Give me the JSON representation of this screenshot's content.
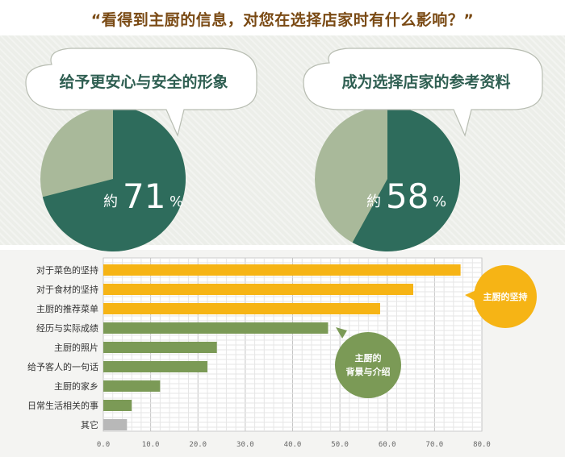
{
  "title": "“看得到主厨的信息，对您在选择店家时有什么影响？”",
  "pies": [
    {
      "bubble": "给予更安心与安全的形象",
      "prefix": "約",
      "value": 71,
      "unit": "%"
    },
    {
      "bubble": "成为选择店家的参考资料",
      "prefix": "約",
      "value": 58,
      "unit": "%"
    }
  ],
  "chart_data": {
    "type": "bar",
    "orientation": "horizontal",
    "categories": [
      "对于菜色的坚持",
      "对于食材的坚持",
      "主厨的推荐菜单",
      "经历与实际成绩",
      "主厨的照片",
      "给予客人的一句话",
      "主厨的家乡",
      "日常生活相关的事",
      "其它"
    ],
    "values": [
      75.5,
      65.5,
      58.5,
      47.5,
      24,
      22,
      12,
      6,
      5
    ],
    "bar_colors": [
      "#f6b415",
      "#f6b415",
      "#f6b415",
      "#7b9a56",
      "#7b9a56",
      "#7b9a56",
      "#7b9a56",
      "#7b9a56",
      "#b8b8b8"
    ],
    "xlim": [
      0,
      80
    ],
    "xticks": [
      "0.0",
      "10.0",
      "20.0",
      "30.0",
      "40.0",
      "50.0",
      "60.0",
      "70.0",
      "80.0"
    ],
    "grid": true,
    "annotations": [
      {
        "text": [
          "主厨的坚持"
        ],
        "color": "#f6b415"
      },
      {
        "text": [
          "主厨的",
          "背景与介绍"
        ],
        "color": "#7b9a56"
      }
    ]
  },
  "colors": {
    "pie_dark": "#2e6c5c",
    "pie_light": "#a9b99a",
    "title": "#7a4a14"
  }
}
